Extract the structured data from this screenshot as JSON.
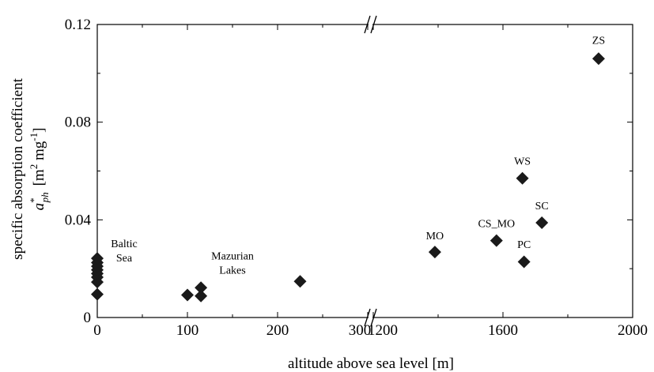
{
  "chart_data": {
    "type": "scatter",
    "xlabel": "altitude above sea level [m]",
    "ylabel": {
      "line1": "specific absorption coefficient",
      "symbol": "a",
      "superscript": "*",
      "subscript": "ph",
      "unit": "[m",
      "unit_sup1": "2",
      "unit_mid": " mg",
      "unit_sup2": "-1",
      "unit_end": "]"
    },
    "ylim": [
      0,
      0.12
    ],
    "yticks": [
      0,
      0.04,
      0.08,
      0.12
    ],
    "ytick_labels": [
      "0",
      "0.04",
      "0.08",
      "0.12"
    ],
    "x_break": true,
    "x_segments": [
      {
        "range": [
          0,
          300
        ],
        "ticks": [
          0,
          100,
          200,
          300
        ],
        "tick_labels": [
          "0",
          "100",
          "200",
          "300"
        ]
      },
      {
        "range": [
          1200,
          2000
        ],
        "ticks": [
          1200,
          1600,
          2000
        ],
        "tick_labels": [
          "1200",
          "1600",
          "2000"
        ]
      }
    ],
    "marker": "diamond",
    "marker_color": "#1a1a1a",
    "grid": false,
    "points": [
      {
        "x": 0,
        "y": 0.0095
      },
      {
        "x": 0,
        "y": 0.0145
      },
      {
        "x": 0,
        "y": 0.0165
      },
      {
        "x": 0,
        "y": 0.018
      },
      {
        "x": 0,
        "y": 0.0195
      },
      {
        "x": 0,
        "y": 0.021
      },
      {
        "x": 0,
        "y": 0.0225
      },
      {
        "x": 0,
        "y": 0.0242
      },
      {
        "x": 100,
        "y": 0.0092
      },
      {
        "x": 115,
        "y": 0.0122
      },
      {
        "x": 115,
        "y": 0.0088
      },
      {
        "x": 225,
        "y": 0.0148
      },
      {
        "x": 1390,
        "y": 0.0268
      },
      {
        "x": 1580,
        "y": 0.0315
      },
      {
        "x": 1665,
        "y": 0.0228
      },
      {
        "x": 1660,
        "y": 0.057
      },
      {
        "x": 1720,
        "y": 0.0388
      },
      {
        "x": 1895,
        "y": 0.106
      }
    ],
    "annotations": [
      {
        "lines": [
          "Baltic",
          "Sea"
        ],
        "x": 0,
        "y": 0.0255
      },
      {
        "lines": [
          "Mazurian",
          "Lakes"
        ],
        "x": 150,
        "y": 0.018
      },
      {
        "lines": [
          "MO"
        ],
        "x": 1390,
        "y": 0.0295
      },
      {
        "lines": [
          "CS_MO"
        ],
        "x": 1580,
        "y": 0.0345
      },
      {
        "lines": [
          "PC"
        ],
        "x": 1665,
        "y": 0.0258
      },
      {
        "lines": [
          "WS"
        ],
        "x": 1660,
        "y": 0.06
      },
      {
        "lines": [
          "SC"
        ],
        "x": 1720,
        "y": 0.0418
      },
      {
        "lines": [
          "ZS"
        ],
        "x": 1895,
        "y": 0.1095
      }
    ]
  }
}
